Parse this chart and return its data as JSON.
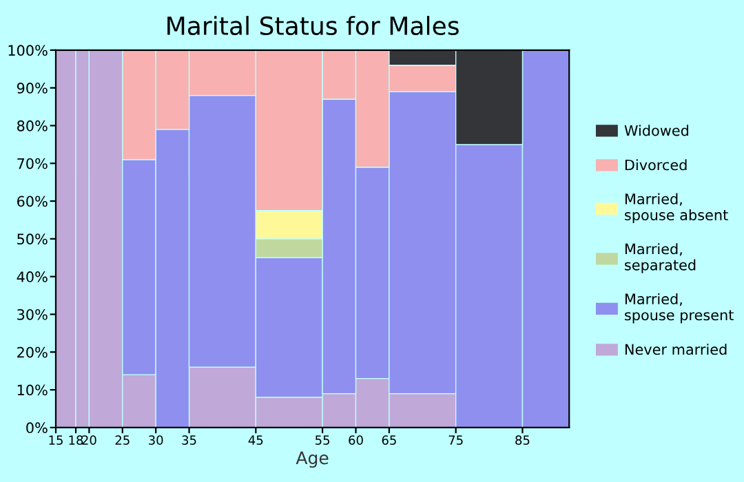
{
  "chart_data": {
    "type": "bar",
    "stacked": true,
    "title": "Marital Status for Males",
    "xlabel": "Age",
    "x": [
      16.5,
      19,
      22.5,
      27.5,
      32.5,
      40,
      50,
      57.5,
      62.5,
      70,
      80,
      88.5
    ],
    "xlim": [
      15,
      92
    ],
    "xticks": [
      15,
      18,
      20,
      25,
      30,
      35,
      45,
      55,
      60,
      65,
      75,
      85
    ],
    "ylim": [
      0,
      100
    ],
    "yticks": [
      {
        "value": 0,
        "label": "0%"
      },
      {
        "value": 10,
        "label": "10%"
      },
      {
        "value": 20,
        "label": "20%"
      },
      {
        "value": 30,
        "label": "30%"
      },
      {
        "value": 40,
        "label": "40%"
      },
      {
        "value": 50,
        "label": "50%"
      },
      {
        "value": 60,
        "label": "60%"
      },
      {
        "value": 70,
        "label": "70%"
      },
      {
        "value": 80,
        "label": "80%"
      },
      {
        "value": 90,
        "label": "90%"
      },
      {
        "value": 100,
        "label": "100%"
      }
    ],
    "grid": false,
    "legend": "right",
    "series": [
      {
        "name": "Never married",
        "color": "#c0a8d8",
        "values": [
          100,
          100,
          100,
          14,
          null,
          16,
          8,
          9,
          13,
          9,
          null,
          null
        ]
      },
      {
        "name": "Married, spouse present",
        "color": "#8f8ff0",
        "values": [
          null,
          null,
          null,
          57,
          79,
          72,
          37,
          78,
          56,
          80,
          75,
          100
        ]
      },
      {
        "name": "Married, separated",
        "color": "#c0d8a0",
        "values": [
          null,
          null,
          null,
          null,
          null,
          null,
          5,
          null,
          null,
          null,
          null,
          null
        ]
      },
      {
        "name": "Married, spouse absent",
        "color": "#fff898",
        "values": [
          null,
          null,
          null,
          null,
          null,
          null,
          7.5,
          null,
          null,
          null,
          null,
          null
        ]
      },
      {
        "name": "Divorced",
        "color": "#f8b0b0",
        "values": [
          null,
          null,
          null,
          29,
          21,
          12,
          42.5,
          13,
          31,
          7,
          null,
          null
        ]
      },
      {
        "name": "Widowed",
        "color": "#333538",
        "values": [
          null,
          null,
          null,
          null,
          null,
          null,
          null,
          null,
          null,
          4,
          25,
          null
        ]
      }
    ]
  }
}
